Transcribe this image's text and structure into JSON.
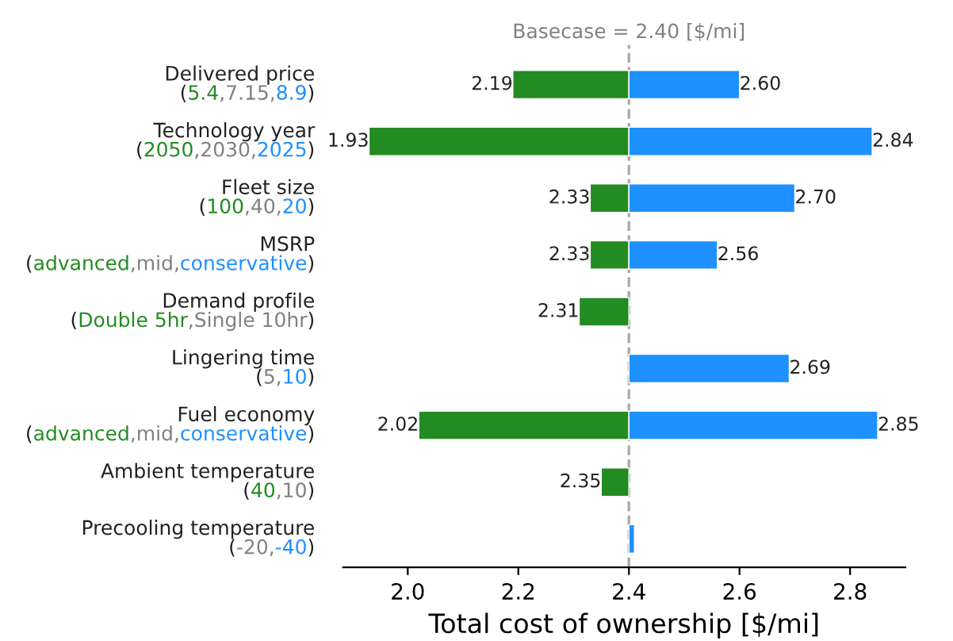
{
  "chart_data": {
    "type": "bar",
    "orientation": "horizontal",
    "xlabel": "Total cost of ownership [$/mi]",
    "categories": [
      "Delivered price\n(5.4,7.15,8.9)",
      "Technology year\n(2050,2030,2025)",
      "Fleet size\n(100,40,20)",
      "MSRP\n(advanced,mid,conservative)",
      "Demand profile\n(Double 5hr,Single 10hr)",
      "Lingering time\n(5,10)",
      "Fuel economy\n(advanced,mid,conservative)",
      "Ambient temperature\n(40,10)",
      "Precooling temperature\n(-20,-40)"
    ],
    "series": [
      {
        "color": "#228b22",
        "base": [
          2.4,
          2.4,
          2.4,
          2.4,
          2.4,
          null,
          2.4,
          2.4,
          null
        ],
        "values": [
          -0.21,
          -0.47,
          -0.07,
          -0.07,
          -0.09,
          null,
          -0.38,
          -0.05,
          null
        ],
        "value_labels": [
          "2.19",
          "1.93",
          "2.33",
          "2.33",
          "2.31",
          null,
          "2.02",
          "2.35",
          null
        ]
      },
      {
        "color": "#1e90ff",
        "base": [
          2.4,
          2.4,
          2.4,
          2.4,
          null,
          2.4,
          2.4,
          null,
          2.4
        ],
        "values": [
          0.2,
          0.44,
          0.3,
          0.16,
          null,
          0.29,
          0.45,
          null,
          0.01
        ],
        "value_labels": [
          "2.60",
          "2.84",
          "2.70",
          "2.56",
          null,
          "2.69",
          "2.85",
          null,
          null
        ]
      }
    ],
    "xlim": [
      1.883,
      2.9
    ],
    "xticks": [
      {
        "value": 2.0,
        "label": "2.0"
      },
      {
        "value": 2.2,
        "label": "2.2"
      },
      {
        "value": 2.4,
        "label": "2.4"
      },
      {
        "value": 2.6,
        "label": "2.6"
      },
      {
        "value": 2.8,
        "label": "2.8"
      }
    ],
    "ref_lines": [
      {
        "axis": "x",
        "value": 2.4,
        "label": "Basecase = 2.40 [$/mi]",
        "color": "#aaaaaa",
        "line_style": "dashed"
      }
    ]
  }
}
